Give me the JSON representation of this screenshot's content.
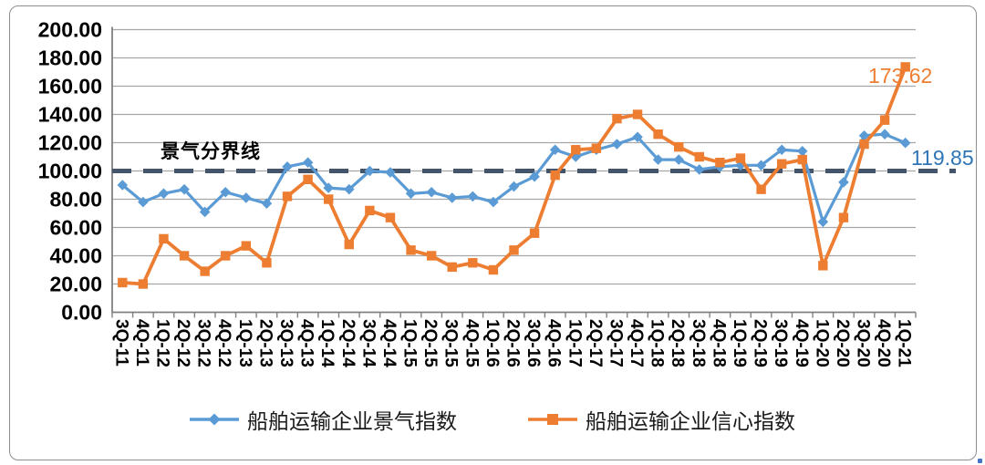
{
  "colors": {
    "series_prosperity": "#5B9BD5",
    "series_confidence": "#ED7D31",
    "reference_line": "#44546A",
    "annotation_prosperity": "#2E75B6",
    "annotation_confidence": "#ED7D31",
    "gridline": "#A6A6A6",
    "axis": "#808080",
    "text": "#000000"
  },
  "legend": {
    "items": [
      {
        "label": "船舶运输企业景气指数",
        "marker": "diamond",
        "color": "#5B9BD5"
      },
      {
        "label": "船舶运输企业信心指数",
        "marker": "square",
        "color": "#ED7D31"
      }
    ]
  },
  "chart_data": {
    "type": "line",
    "title": "",
    "xlabel": "",
    "ylabel": "",
    "ylim": [
      0,
      200
    ],
    "ytick_step": 20,
    "ytick_format": "0.00",
    "grid": true,
    "legend_position": "bottom",
    "categories": [
      "3Q-11",
      "4Q-11",
      "1Q-12",
      "2Q-12",
      "3Q-12",
      "4Q-12",
      "1Q-13",
      "2Q-13",
      "3Q-13",
      "4Q-13",
      "1Q-14",
      "2Q-14",
      "3Q-14",
      "4Q-14",
      "1Q-15",
      "2Q-15",
      "3Q-15",
      "4Q-15",
      "1Q-16",
      "2Q-16",
      "3Q-16",
      "4Q-16",
      "1Q-17",
      "2Q-17",
      "3Q-17",
      "4Q-17",
      "1Q-18",
      "2Q-18",
      "3Q-18",
      "4Q-18",
      "1Q-19",
      "2Q-19",
      "3Q-19",
      "4Q-19",
      "1Q-20",
      "2Q-20",
      "3Q-20",
      "4Q-20",
      "1Q-21"
    ],
    "series": [
      {
        "name": "船舶运输企业景气指数",
        "color": "#5B9BD5",
        "marker": "diamond",
        "values": [
          90,
          78,
          84,
          87,
          71,
          85,
          81,
          77,
          103,
          106,
          88,
          87,
          100,
          99,
          84,
          85,
          81,
          82,
          78,
          89,
          96,
          115,
          110,
          115,
          119,
          124,
          108,
          108,
          101,
          103,
          104,
          104,
          115,
          114,
          64,
          92,
          125,
          126,
          119.85
        ]
      },
      {
        "name": "船舶运输企业信心指数",
        "color": "#ED7D31",
        "marker": "square",
        "values": [
          21,
          20,
          52,
          40,
          29,
          40,
          47,
          35,
          82,
          94,
          80,
          48,
          72,
          67,
          44,
          40,
          32,
          35,
          30,
          44,
          56,
          97,
          115,
          116,
          137,
          140,
          126,
          117,
          110,
          106,
          109,
          87,
          105,
          108,
          33,
          67,
          119,
          136,
          173.62
        ]
      }
    ],
    "reference_line": {
      "value": 100,
      "label": "景气分界线",
      "style": "dashed",
      "color": "#44546A"
    },
    "point_labels": [
      {
        "series": "船舶运输企业信心指数",
        "category": "1Q-21",
        "text": "173.62",
        "color": "#ED7D31"
      },
      {
        "series": "船舶运输企业景气指数",
        "category": "1Q-21",
        "text": "119.85",
        "color": "#2E75B6"
      }
    ]
  }
}
